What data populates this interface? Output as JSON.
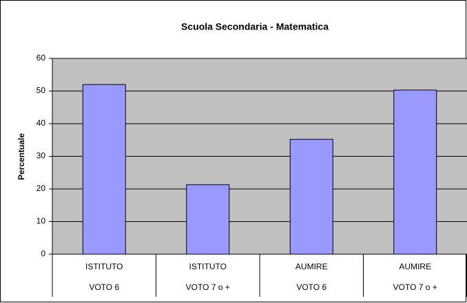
{
  "chart_data": {
    "type": "bar",
    "title": "Scuola Secondaria - Matematica",
    "y_label": "Percentuale",
    "categories": [
      [
        "ISTITUTO",
        "VOTO 6"
      ],
      [
        "ISTITUTO",
        "VOTO 7 o +"
      ],
      [
        "AUMIRE",
        "VOTO 6"
      ],
      [
        "AUMIRE",
        "VOTO 7 o +"
      ]
    ],
    "values": [
      52,
      21.3,
      35.2,
      50.3
    ],
    "color": "#9999ff",
    "ylim": [
      0,
      60
    ],
    "yticks": [
      0,
      10,
      20,
      30,
      40,
      50,
      60
    ],
    "grid": true
  }
}
